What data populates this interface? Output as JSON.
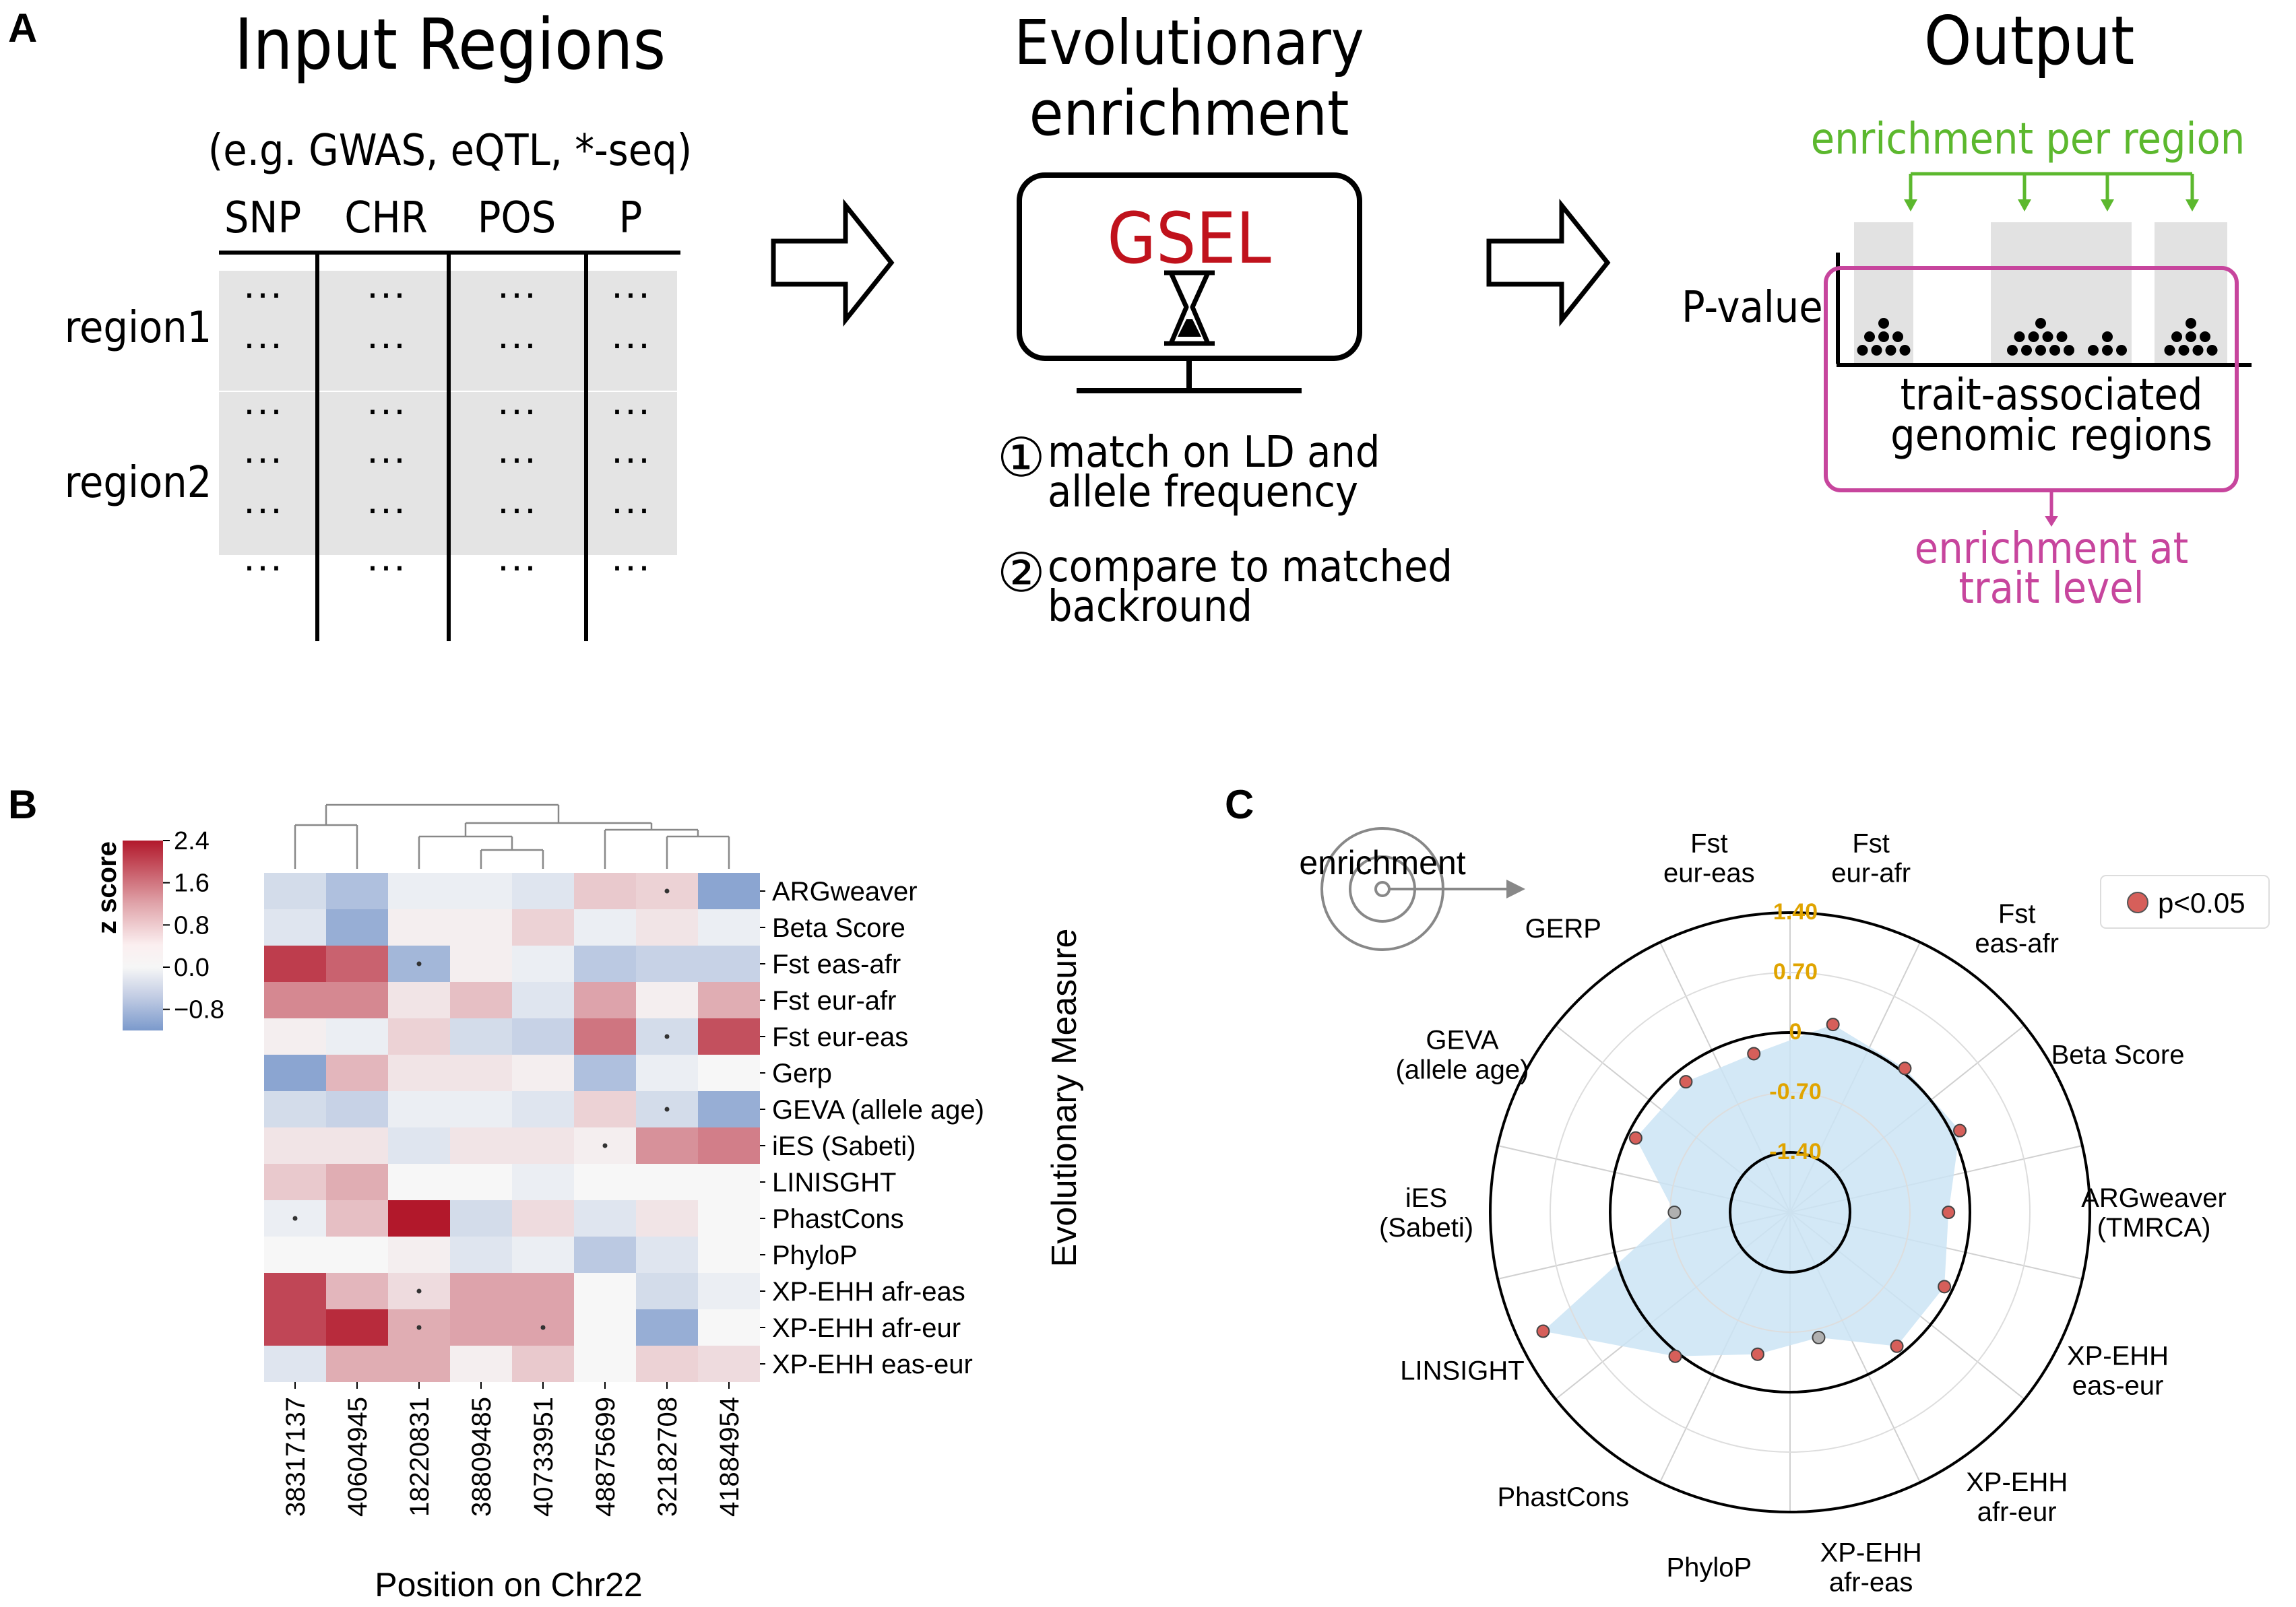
{
  "panel_labels": {
    "a": "A",
    "b": "B",
    "c": "C"
  },
  "panel_a": {
    "input": {
      "title": "Input Regions",
      "subtitle": "(e.g. GWAS, eQTL, *-seq)",
      "columns": [
        "SNP",
        "CHR",
        "POS",
        "P"
      ],
      "row_labels": [
        "region1",
        "region2"
      ],
      "cell": "···"
    },
    "middle": {
      "title_line1": "Evolutionary",
      "title_line2": "enrichment",
      "tool_name": "GSEL",
      "tool_color": "#c0121c",
      "step1_num": "①",
      "step1_line1": "match on LD and",
      "step1_line2": "allele frequency",
      "step2_num": "②",
      "step2_line1": "compare to matched",
      "step2_line2": "backround"
    },
    "output": {
      "title": "Output",
      "per_region": "enrichment per region",
      "per_region_color": "#5cb82e",
      "pvalue": "P-value",
      "regions_line1": "trait-associated",
      "regions_line2": "genomic regions",
      "trait_line1": "enrichment at",
      "trait_line2": "trait level",
      "trait_color": "#c7459d",
      "dot_counts": [
        8,
        10,
        4,
        8
      ]
    }
  },
  "panel_b": {
    "colorbar": {
      "label": "z score",
      "ticks": [
        "2.4",
        "1.6",
        "0.8",
        "0.0",
        "−0.8"
      ],
      "min": -1.2,
      "max": 2.4
    },
    "ylabel": "Evolutionary Measure",
    "xlabel": "Position on Chr22"
  },
  "panel_c": {
    "enrichment_label": "enrichment",
    "legend_label": "p<0.05",
    "point_color": "#d65f5a",
    "fill_color": "#cbe4f5",
    "ring_labels": [
      "1.40",
      "0.70",
      "0",
      "-0.70",
      "-1.40"
    ],
    "ring_label_color": "#e0a400",
    "rlim": [
      -2.1,
      1.4
    ]
  },
  "chart_data": [
    {
      "type": "heatmap",
      "panel": "B",
      "columns": [
        "38317137",
        "40604945",
        "18220831",
        "38809485",
        "40733951",
        "48875699",
        "32182708",
        "41884954"
      ],
      "rows": [
        "ARGweaver",
        "Beta Score",
        "Fst eas-afr",
        "Fst eur-afr",
        "Fst eur-eas",
        "Gerp",
        "GEVA (allele age)",
        "iES (Sabeti)",
        "LINISGHT",
        "PhastCons",
        "PhyloP",
        "XP-EHH afr-eas",
        "XP-EHH afr-eur",
        "XP-EHH eas-eur"
      ],
      "values": [
        [
          -0.3,
          -0.6,
          -0.1,
          -0.1,
          -0.2,
          0.5,
          0.4,
          -0.9
        ],
        [
          -0.2,
          -0.8,
          0.1,
          0.1,
          0.4,
          -0.1,
          0.2,
          -0.1
        ],
        [
          2.0,
          1.6,
          -0.7,
          0.1,
          -0.1,
          -0.5,
          -0.4,
          -0.4
        ],
        [
          1.2,
          1.2,
          0.2,
          0.6,
          -0.2,
          0.9,
          0.1,
          0.8
        ],
        [
          0.1,
          -0.1,
          0.4,
          -0.3,
          -0.4,
          1.4,
          -0.3,
          1.8
        ],
        [
          -0.9,
          0.7,
          0.2,
          0.2,
          0.1,
          -0.6,
          -0.1,
          0.0
        ],
        [
          -0.3,
          -0.4,
          -0.1,
          -0.1,
          -0.2,
          0.4,
          -0.3,
          -0.8
        ],
        [
          0.2,
          0.2,
          -0.2,
          0.2,
          0.2,
          0.1,
          1.1,
          1.3
        ],
        [
          0.5,
          0.8,
          0.0,
          0.0,
          -0.1,
          0.0,
          0.0,
          0.0
        ],
        [
          -0.1,
          0.6,
          2.6,
          -0.3,
          0.3,
          -0.2,
          0.2,
          0.0
        ],
        [
          0.0,
          0.0,
          0.1,
          -0.2,
          -0.1,
          -0.5,
          -0.2,
          0.0
        ],
        [
          1.9,
          0.7,
          0.3,
          0.9,
          0.9,
          0.0,
          -0.3,
          -0.1
        ],
        [
          1.9,
          2.2,
          0.8,
          0.9,
          0.9,
          0.0,
          -0.8,
          0.0
        ],
        [
          -0.2,
          0.8,
          0.8,
          0.1,
          0.5,
          0.0,
          0.4,
          0.3
        ]
      ],
      "marked_cells": [
        [
          0,
          6
        ],
        [
          2,
          2
        ],
        [
          4,
          6
        ],
        [
          6,
          6
        ],
        [
          7,
          5
        ],
        [
          9,
          0
        ],
        [
          11,
          2
        ],
        [
          12,
          2
        ],
        [
          12,
          4
        ]
      ]
    },
    {
      "type": "radar",
      "panel": "C",
      "categories": [
        "Fst\neur-afr",
        "Fst\neas-afr",
        "Beta Score",
        "ARGweaver\n(TMRCA)",
        "XP-EHH\neas-eur",
        "XP-EHH\nafr-eur",
        "XP-EHH\nafr-eas",
        "PhyloP",
        "PhastCons",
        "LINSIGHT",
        "iES\n(Sabeti)",
        "GEVA\n(allele age)",
        "GERP",
        "Fst\neur-eas"
      ],
      "values": [
        0.15,
        0.05,
        0.1,
        -0.25,
        -0.1,
        -0.1,
        -0.6,
        -0.4,
        0.05,
        1.1,
        -0.75,
        -0.1,
        -0.15,
        -0.2
      ],
      "significant": [
        true,
        true,
        true,
        true,
        true,
        true,
        false,
        true,
        true,
        true,
        false,
        true,
        true,
        true
      ]
    }
  ]
}
